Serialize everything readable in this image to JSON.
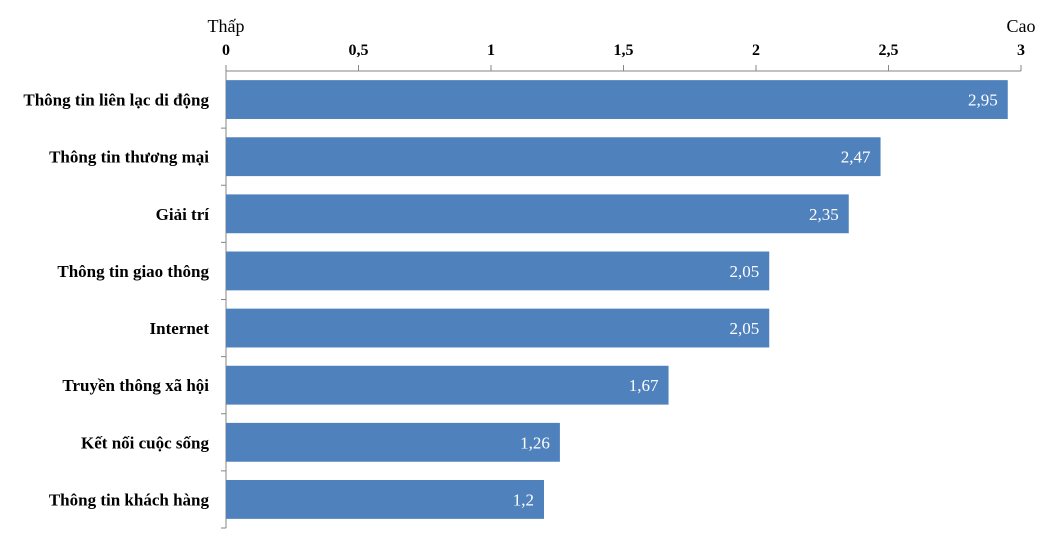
{
  "chart_data": {
    "type": "bar",
    "orientation": "horizontal",
    "categories": [
      "Thông tin liên lạc di động",
      "Thông tin thương mại",
      "Giải trí",
      "Thông tin giao thông",
      "Internet",
      "Truyền thông xã hội",
      "Kết nối cuộc sống",
      "Thông tin khách hàng"
    ],
    "values": [
      2.95,
      2.47,
      2.35,
      2.05,
      2.05,
      1.67,
      1.26,
      1.2
    ],
    "value_labels": [
      "2,95",
      "2,47",
      "2,35",
      "2,05",
      "2,05",
      "1,67",
      "1,26",
      "1,2"
    ],
    "xlim": [
      0,
      3
    ],
    "ticks": [
      0,
      0.5,
      1,
      1.5,
      2,
      2.5,
      3
    ],
    "tick_labels": [
      "0",
      "0,5",
      "1",
      "1,5",
      "2",
      "2,5",
      "3"
    ],
    "axis_position": "top",
    "axis_low_label": "Thấp",
    "axis_high_label": "Cao",
    "grid": false,
    "bar_color": "#4f81bd"
  }
}
